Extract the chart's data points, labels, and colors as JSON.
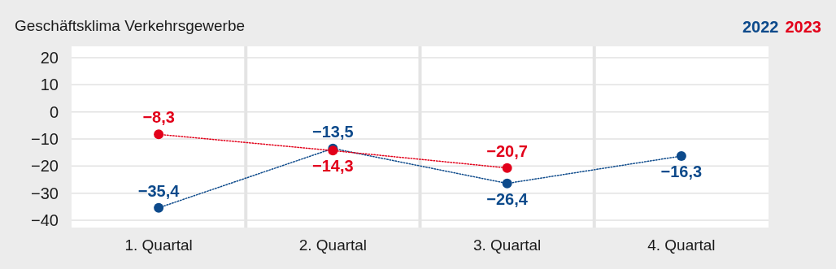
{
  "chart_data": {
    "type": "line",
    "title": "Geschäftsklima Verkehrsgewerbe",
    "categories": [
      "1. Quartal",
      "2. Quartal",
      "3. Quartal",
      "4. Quartal"
    ],
    "series": [
      {
        "name": "2022",
        "color": "#0d4a8b",
        "values": [
          -35.4,
          -13.5,
          -26.4,
          -16.3
        ],
        "value_labels": [
          "−35,4",
          "−13,5",
          "−26,4",
          "−16,3"
        ]
      },
      {
        "name": "2023",
        "color": "#e2001a",
        "values": [
          -8.3,
          -14.3,
          -20.7,
          null
        ],
        "value_labels": [
          "−8,3",
          "−14,3",
          "−20,7",
          null
        ]
      }
    ],
    "ylim": [
      -40,
      20
    ],
    "yticks": [
      {
        "value": -40,
        "label": "−40"
      },
      {
        "value": -30,
        "label": "−30"
      },
      {
        "value": -20,
        "label": "−20"
      },
      {
        "value": -10,
        "label": "−10"
      },
      0,
      10,
      20
    ],
    "grid": "y",
    "legend": "top right",
    "marker": "circle",
    "line_style": "dotted"
  }
}
